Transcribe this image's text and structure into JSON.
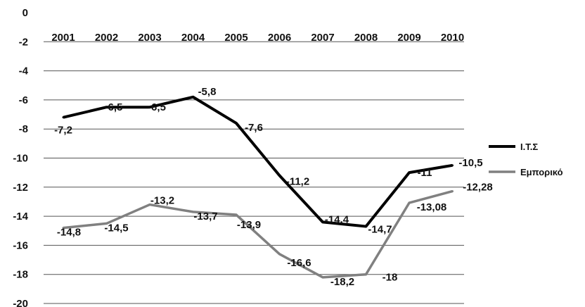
{
  "chart_data": {
    "type": "line",
    "categories": [
      "2001",
      "2002",
      "2003",
      "2004",
      "2005",
      "2006",
      "2007",
      "2008",
      "2009",
      "2010"
    ],
    "series": [
      {
        "name": "Ι.Τ.Σ",
        "color": "#000000",
        "values": [
          -7.2,
          -6.5,
          -6.5,
          -5.8,
          -7.6,
          -11.2,
          -14.4,
          -14.7,
          -11,
          -10.5
        ],
        "labels": [
          "-7,2",
          "-6,5",
          "-6,5",
          "-5,8",
          "-7,6",
          "-11,2",
          "-14,4",
          "-14,7",
          "-11",
          "-10,5"
        ]
      },
      {
        "name": "Εμπορικό",
        "color": "#808080",
        "values": [
          -14.8,
          -14.5,
          -13.2,
          -13.7,
          -13.9,
          -16.6,
          -18.2,
          -18,
          -13.08,
          -12.28
        ],
        "labels": [
          "-14,8",
          "-14,5",
          "-13,2",
          "-13,7",
          "-13,9",
          "-16,6",
          "-18,2",
          "-18",
          "-13,08",
          "-12,28"
        ]
      }
    ],
    "ylim": [
      -20,
      0
    ],
    "yticks": [
      0,
      -2,
      -4,
      -6,
      -8,
      -10,
      -12,
      -14,
      -16,
      -18,
      -20
    ],
    "ytick_labels": [
      "0",
      "-2",
      "-4",
      "-6",
      "-8",
      "-10",
      "-12",
      "-14",
      "-16",
      "-18",
      "-20"
    ],
    "grid": true,
    "legend": "right",
    "title": "",
    "xlabel": "",
    "ylabel": ""
  }
}
